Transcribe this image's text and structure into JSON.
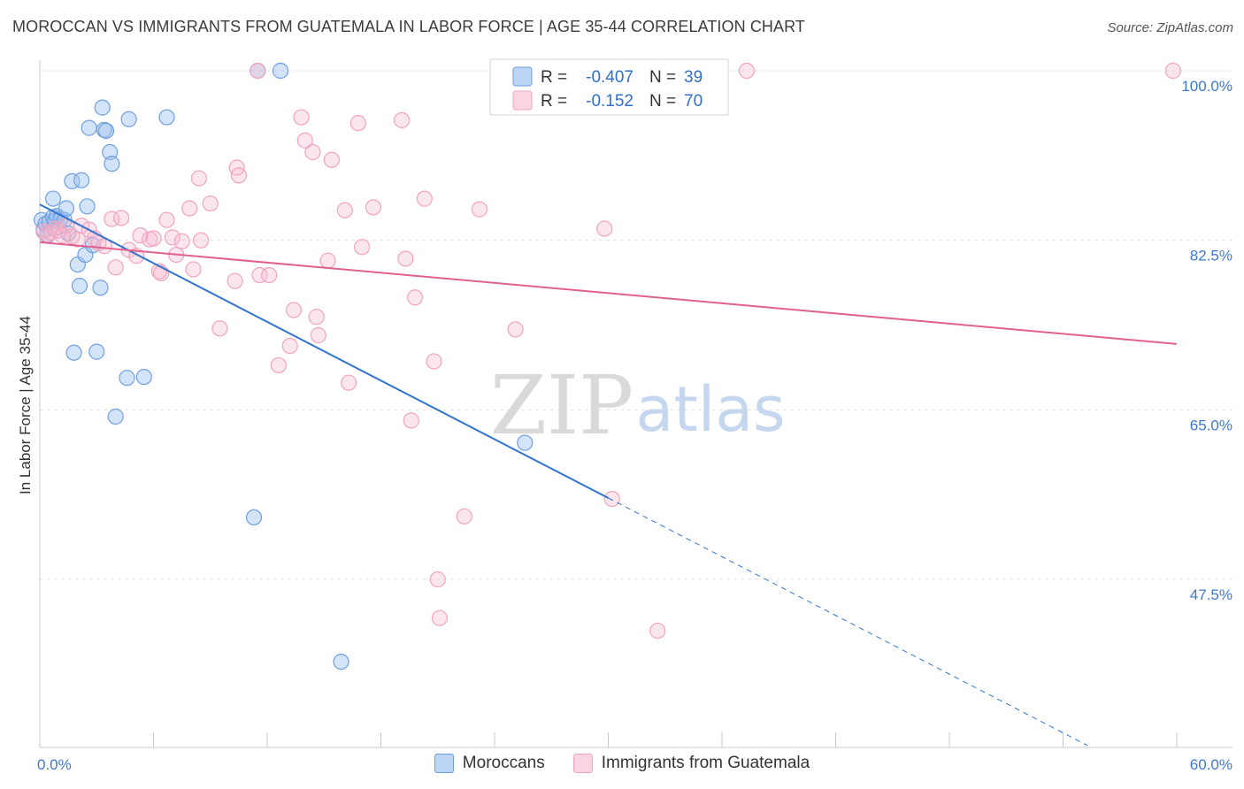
{
  "title": "MOROCCAN VS IMMIGRANTS FROM GUATEMALA IN LABOR FORCE | AGE 35-44 CORRELATION CHART",
  "source": "Source: ZipAtlas.com",
  "watermark": {
    "zip": "ZIP",
    "atlas": "atlas"
  },
  "chart_data": {
    "type": "scatter",
    "title": "MOROCCAN VS IMMIGRANTS FROM GUATEMALA IN LABOR FORCE | AGE 35-44 CORRELATION CHART",
    "xlabel": "",
    "ylabel": "In Labor Force | Age 35-44",
    "xlim": [
      0,
      60
    ],
    "ylim": [
      31,
      102
    ],
    "x_tick_labels": [
      "0.0%",
      "60.0%"
    ],
    "y_ticks": [
      {
        "value": 100,
        "label": "100.0%"
      },
      {
        "value": 82.5,
        "label": "82.5%"
      },
      {
        "value": 65,
        "label": "65.0%"
      },
      {
        "value": 47.5,
        "label": "47.5%"
      }
    ],
    "grid": true,
    "series": [
      {
        "name": "Moroccans",
        "color": "#6e9fe0",
        "line_color": "#2f74d0",
        "R": "-0.407",
        "N": "39",
        "trend": {
          "x0": 0,
          "y0": 86.2,
          "x1": 30,
          "y1": 55.9,
          "dash_to_x": 55.3
        },
        "points": [
          [
            0.1,
            84.6
          ],
          [
            0.2,
            83.6
          ],
          [
            0.3,
            84.2
          ],
          [
            0.4,
            83.0
          ],
          [
            0.5,
            84.4
          ],
          [
            0.7,
            84.9
          ],
          [
            0.8,
            84.5
          ],
          [
            0.9,
            85.0
          ],
          [
            1.0,
            83.9
          ],
          [
            1.1,
            84.7
          ],
          [
            1.3,
            84.6
          ],
          [
            0.7,
            86.8
          ],
          [
            1.4,
            85.8
          ],
          [
            1.5,
            83.2
          ],
          [
            1.7,
            88.6
          ],
          [
            2.2,
            88.7
          ],
          [
            2.5,
            86.0
          ],
          [
            2.0,
            80.0
          ],
          [
            2.4,
            81.0
          ],
          [
            2.1,
            77.8
          ],
          [
            3.2,
            77.6
          ],
          [
            3.3,
            96.2
          ],
          [
            3.4,
            93.9
          ],
          [
            3.5,
            93.8
          ],
          [
            2.6,
            94.1
          ],
          [
            3.7,
            91.6
          ],
          [
            3.8,
            90.4
          ],
          [
            4.7,
            95.0
          ],
          [
            6.7,
            95.2
          ],
          [
            2.8,
            82.0
          ],
          [
            1.8,
            70.9
          ],
          [
            3.0,
            71.0
          ],
          [
            4.6,
            68.3
          ],
          [
            5.5,
            68.4
          ],
          [
            4.0,
            64.3
          ],
          [
            11.5,
            100.0
          ],
          [
            12.7,
            100.0
          ],
          [
            11.3,
            53.9
          ],
          [
            15.9,
            39.0
          ],
          [
            25.6,
            61.6
          ]
        ]
      },
      {
        "name": "Immigrants from Guatemala",
        "color": "#f2a3bf",
        "line_color": "#e0608e",
        "R": "-0.152",
        "N": "70",
        "trend": {
          "x0": 0,
          "y0": 82.3,
          "x1": 60,
          "y1": 71.8
        },
        "points": [
          [
            0.2,
            83.4
          ],
          [
            0.4,
            83.1
          ],
          [
            0.6,
            83.3
          ],
          [
            0.8,
            83.7
          ],
          [
            1.0,
            83.5
          ],
          [
            1.2,
            83.0
          ],
          [
            1.4,
            84.0
          ],
          [
            1.7,
            82.9
          ],
          [
            2.0,
            82.6
          ],
          [
            2.2,
            84.0
          ],
          [
            2.6,
            83.6
          ],
          [
            2.9,
            82.7
          ],
          [
            3.1,
            82.2
          ],
          [
            3.4,
            81.9
          ],
          [
            3.8,
            84.7
          ],
          [
            4.3,
            84.8
          ],
          [
            4.0,
            79.7
          ],
          [
            4.7,
            81.5
          ],
          [
            5.1,
            80.9
          ],
          [
            5.3,
            83.0
          ],
          [
            5.8,
            82.6
          ],
          [
            6.0,
            82.7
          ],
          [
            6.3,
            79.3
          ],
          [
            6.4,
            79.1
          ],
          [
            6.7,
            84.6
          ],
          [
            7.0,
            82.8
          ],
          [
            7.2,
            81.0
          ],
          [
            7.5,
            82.4
          ],
          [
            7.9,
            85.8
          ],
          [
            8.1,
            79.5
          ],
          [
            8.5,
            82.5
          ],
          [
            8.4,
            88.9
          ],
          [
            9.0,
            86.3
          ],
          [
            9.5,
            73.4
          ],
          [
            10.4,
            90.0
          ],
          [
            10.5,
            89.2
          ],
          [
            10.3,
            78.3
          ],
          [
            11.5,
            100.0
          ],
          [
            11.6,
            78.9
          ],
          [
            12.1,
            78.9
          ],
          [
            12.6,
            69.6
          ],
          [
            13.2,
            71.6
          ],
          [
            13.4,
            75.3
          ],
          [
            13.8,
            95.2
          ],
          [
            14.0,
            92.8
          ],
          [
            14.4,
            91.6
          ],
          [
            14.7,
            72.7
          ],
          [
            14.6,
            74.6
          ],
          [
            15.2,
            80.4
          ],
          [
            15.4,
            90.8
          ],
          [
            16.1,
            85.6
          ],
          [
            16.3,
            67.8
          ],
          [
            16.8,
            94.6
          ],
          [
            17.0,
            81.8
          ],
          [
            17.6,
            85.9
          ],
          [
            19.1,
            94.9
          ],
          [
            19.6,
            63.9
          ],
          [
            19.8,
            76.6
          ],
          [
            19.3,
            80.6
          ],
          [
            20.3,
            86.8
          ],
          [
            20.8,
            70.0
          ],
          [
            21.0,
            47.5
          ],
          [
            21.1,
            43.5
          ],
          [
            22.4,
            54.0
          ],
          [
            23.2,
            85.7
          ],
          [
            25.1,
            73.3
          ],
          [
            29.8,
            83.7
          ],
          [
            30.2,
            55.8
          ],
          [
            32.6,
            42.2
          ],
          [
            37.3,
            100.0
          ],
          [
            59.8,
            100.0
          ]
        ]
      }
    ]
  }
}
